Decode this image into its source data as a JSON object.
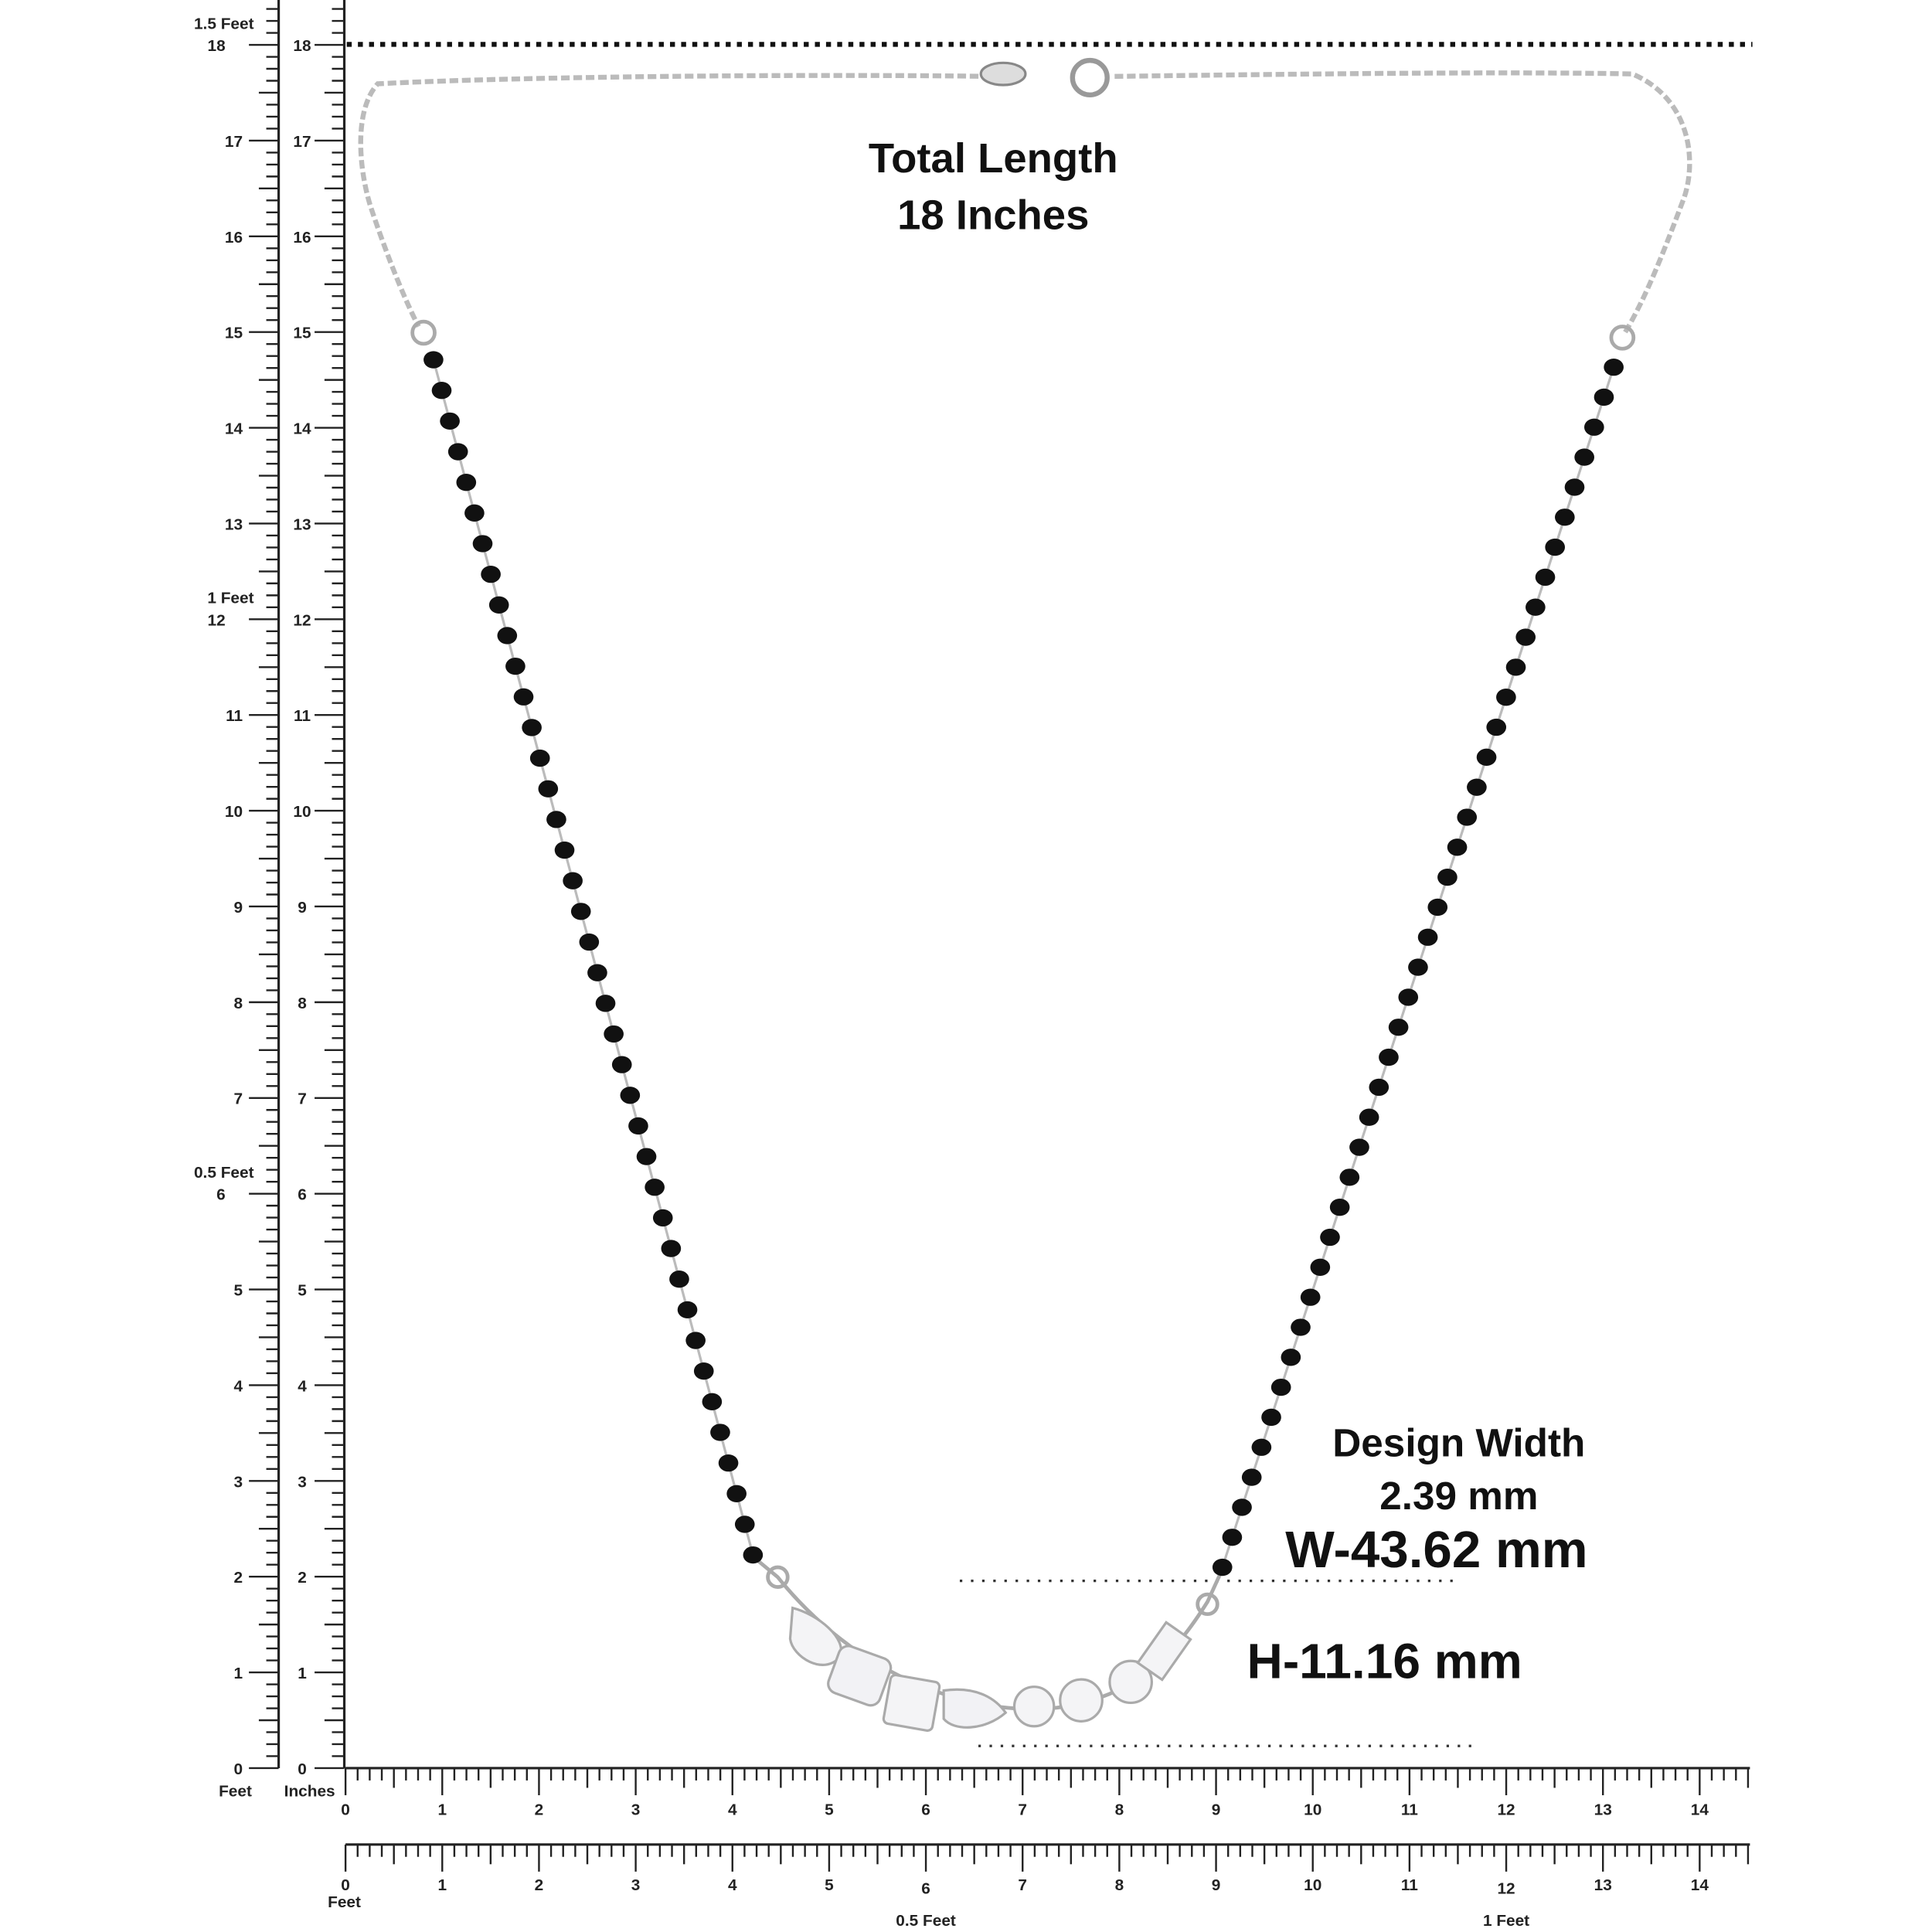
{
  "left_ruler": {
    "outer_numbers": [
      0,
      1,
      2,
      3,
      4,
      5,
      6,
      7,
      8,
      9,
      10,
      11,
      12,
      13,
      14,
      15,
      16,
      17,
      18
    ],
    "inner_numbers": [
      0,
      1,
      2,
      3,
      4,
      5,
      6,
      7,
      8,
      9,
      10,
      11,
      12,
      13,
      14,
      15,
      16,
      17,
      18
    ],
    "feet_labels": [
      "0.5 Feet",
      "1 Feet",
      "1.5 Feet"
    ],
    "outer_unit": "Feet",
    "inner_unit": "Inches"
  },
  "bottom_ruler": {
    "upper_numbers": [
      0,
      1,
      2,
      3,
      4,
      5,
      6,
      7,
      8,
      9,
      10,
      11,
      12,
      13,
      14
    ],
    "lower_numbers": [
      0,
      1,
      2,
      3,
      4,
      5,
      6,
      7,
      8,
      9,
      10,
      11,
      12,
      13,
      14
    ],
    "lower_unit": "Feet",
    "feet_labels": [
      "0.5 Feet",
      "1 Feet"
    ]
  },
  "annotations": {
    "total_length_label": "Total Length",
    "total_length_value": "18 Inches",
    "design_width_label": "Design Width",
    "design_width_value": "2.39 mm",
    "width": "W-43.62 mm",
    "height": "H-11.16 mm"
  }
}
